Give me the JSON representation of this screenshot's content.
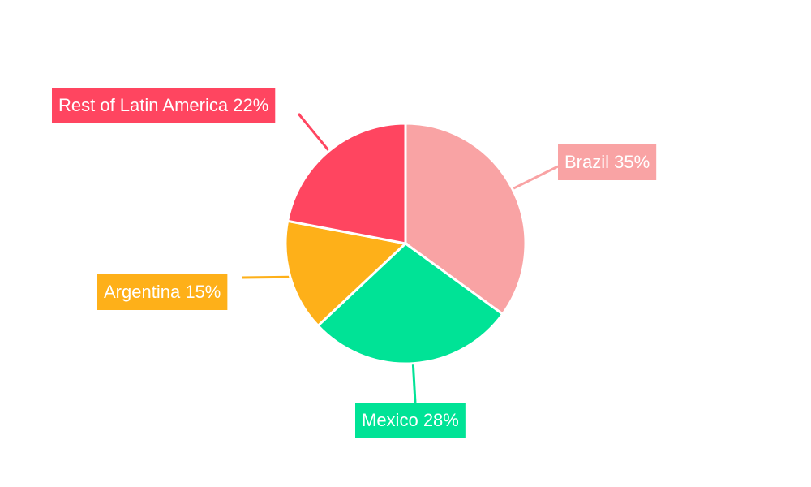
{
  "chart_data": {
    "type": "pie",
    "categories": [
      "Brazil",
      "Mexico",
      "Argentina",
      "Rest of Latin America"
    ],
    "values": [
      35,
      28,
      15,
      22
    ],
    "value_labels": [
      "35%",
      "28%",
      "15%",
      "22%"
    ],
    "colors": [
      "#f9a3a4",
      "#00e396",
      "#feb019",
      "#ff4560"
    ]
  }
}
